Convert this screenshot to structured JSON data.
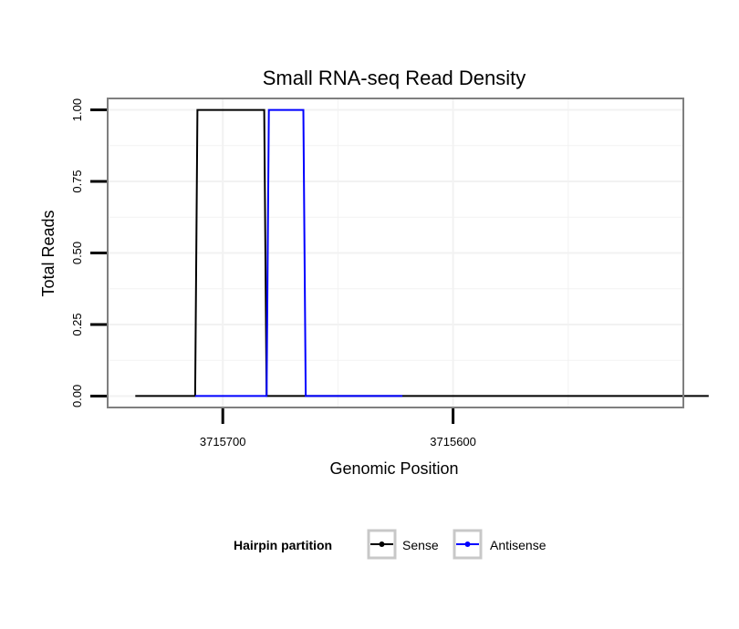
{
  "chart_data": {
    "type": "line",
    "title": "Small RNA-seq Read Density",
    "xlabel": "Genomic Position",
    "ylabel": "Total Reads",
    "x_reversed": true,
    "xlim": [
      3715750,
      3715500
    ],
    "ylim": [
      -0.04,
      1.04
    ],
    "x_ticks": [
      3715700,
      3715600
    ],
    "x_tick_labels": [
      "3715700",
      "3715600"
    ],
    "y_ticks": [
      0,
      0.25,
      0.5,
      0.75,
      1.0
    ],
    "y_tick_labels": [
      "0.00",
      "0.25",
      "0.50",
      "0.75",
      "1.00"
    ],
    "legend_title": "Hairpin partition",
    "legend_position": "bottom",
    "series": [
      {
        "name": "Sense",
        "color": "#000000",
        "x": [
          3715738,
          3715712,
          3715711,
          3715682,
          3715681,
          3715489
        ],
        "y": [
          0,
          0,
          1,
          1,
          0,
          0
        ]
      },
      {
        "name": "Antisense",
        "color": "#0000ff",
        "x": [
          3715712,
          3715681,
          3715680,
          3715665,
          3715664,
          3715622
        ],
        "y": [
          0,
          0,
          1,
          1,
          0,
          0
        ]
      }
    ]
  }
}
